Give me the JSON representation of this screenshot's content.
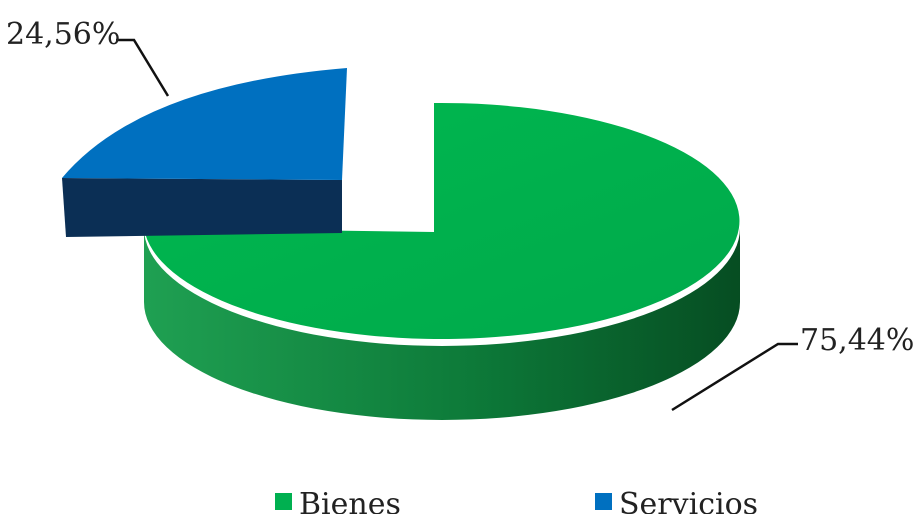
{
  "chart_data": {
    "type": "pie",
    "variant": "3d-exploded",
    "categories": [
      "Bienes",
      "Servicios"
    ],
    "values": [
      75.44,
      24.56
    ],
    "data_labels": [
      "75,44%",
      "24,56%"
    ],
    "colors": {
      "Bienes": {
        "top": "#00b050",
        "side": "#0a6b30"
      },
      "Servicios": {
        "top": "#0070c0",
        "side": "#0b2f55"
      }
    },
    "legend": {
      "position": "bottom",
      "items": [
        {
          "label": "Bienes",
          "color": "#00b050"
        },
        {
          "label": "Servicios",
          "color": "#0070c0"
        }
      ]
    }
  }
}
